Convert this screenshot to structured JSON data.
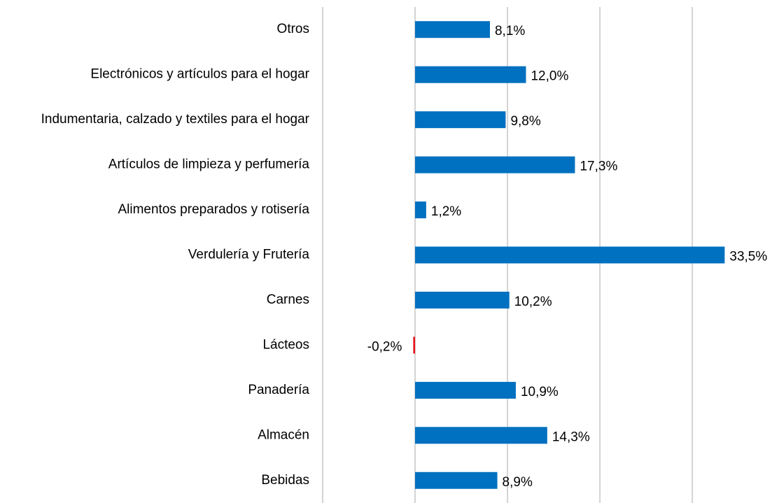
{
  "chart_data": {
    "type": "hbar",
    "categories": [
      "Otros",
      "Electrónicos y artículos para el hogar",
      "Indumentaria, calzado y textiles para el hogar",
      "Artículos de limpieza y perfumería",
      "Alimentos preparados y rotisería",
      "Verdulería y Frutería",
      "Carnes",
      "Lácteos",
      "Panadería",
      "Almacén",
      "Bebidas"
    ],
    "values": [
      8.1,
      12.0,
      9.8,
      17.3,
      1.2,
      33.5,
      10.2,
      -0.2,
      10.9,
      14.3,
      8.9
    ],
    "value_labels": [
      "8,1%",
      "12,0%",
      "9,8%",
      "17,3%",
      "1,2%",
      "33,5%",
      "10,2%",
      "-0,2%",
      "10,9%",
      "14,3%",
      "8,9%"
    ],
    "color": "#0070c0",
    "negative_color": "#e8141b",
    "xlim": [
      -10,
      39
    ],
    "xticks": [
      -10,
      0,
      10,
      20,
      30
    ],
    "grid": true
  }
}
